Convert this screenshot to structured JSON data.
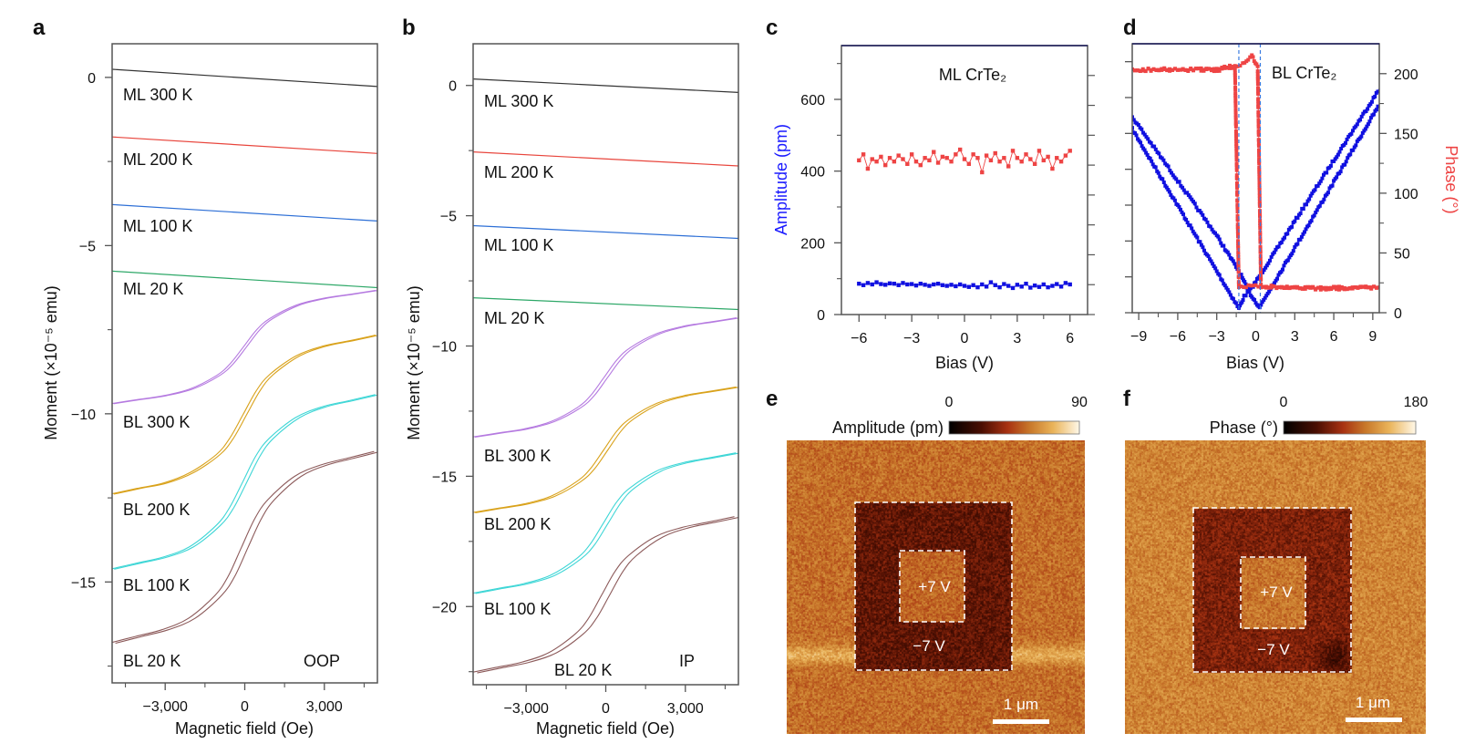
{
  "panel_labels": {
    "a": "a",
    "b": "b",
    "c": "c",
    "d": "d",
    "e": "e",
    "f": "f"
  },
  "chart_data": [
    {
      "panel": "a",
      "type": "line",
      "xlabel": "Magnetic field (Oe)",
      "ylabel": "Moment (×10⁻⁵ emu)",
      "annotation": "OOP",
      "xlim": [
        -5000,
        5000
      ],
      "ylim": [
        -18,
        1
      ],
      "xticks": [
        -3000,
        0,
        3000
      ],
      "xtick_labels": [
        "−3,000",
        "0",
        "3,000"
      ],
      "xminor": [
        -4500,
        -1500,
        1500,
        4500
      ],
      "yticks": [
        0,
        -5,
        -10,
        -15
      ],
      "ytick_labels": [
        "0",
        "−5",
        "−10",
        "−15"
      ],
      "yminor": [
        -2.5,
        -7.5,
        -12.5,
        -17.5
      ],
      "x_grid": [
        -5000,
        -4000,
        -3000,
        -2000,
        -1000,
        -500,
        0,
        500,
        1000,
        2000,
        3000,
        4000,
        5000
      ],
      "series": [
        {
          "name": "ML 300 K",
          "color": "#333333",
          "x": [
            -5000,
            5000
          ],
          "y": [
            0.24,
            -0.27
          ]
        },
        {
          "name": "ML 200 K",
          "color": "#e8453c",
          "x": [
            -5000,
            5000
          ],
          "y": [
            -1.77,
            -2.26
          ]
        },
        {
          "name": "ML 100 K",
          "color": "#2d6fd6",
          "x": [
            -5000,
            5000
          ],
          "y": [
            -3.78,
            -4.27
          ]
        },
        {
          "name": "ML 20 K",
          "color": "#2ea868",
          "x": [
            -5000,
            5000
          ],
          "y": [
            -5.76,
            -6.25
          ]
        },
        {
          "name": "BL 300 K",
          "color": "#b57ae0",
          "coercivity_oe": 60,
          "y": [
            -9.7,
            -9.58,
            -9.46,
            -9.26,
            -8.86,
            -8.52,
            -8.02,
            -7.51,
            -7.17,
            -6.77,
            -6.57,
            -6.45,
            -6.33
          ]
        },
        {
          "name": "BL 200 K",
          "color": "#d9a21b",
          "coercivity_oe": 70,
          "y": [
            -12.39,
            -12.22,
            -12.06,
            -11.75,
            -11.21,
            -10.73,
            -10.03,
            -9.32,
            -8.84,
            -8.28,
            -7.99,
            -7.83,
            -7.66
          ]
        },
        {
          "name": "BL 100 K",
          "color": "#3ed6d6",
          "coercivity_oe": 80,
          "y": [
            -14.62,
            -14.44,
            -14.26,
            -13.95,
            -13.32,
            -12.8,
            -12.03,
            -11.25,
            -10.73,
            -10.11,
            -9.79,
            -9.61,
            -9.43
          ]
        },
        {
          "name": "BL 20 K",
          "color": "#8c5a5a",
          "coercivity_oe": 125,
          "y": [
            -16.82,
            -16.62,
            -16.42,
            -16.08,
            -15.4,
            -14.83,
            -13.97,
            -13.12,
            -12.55,
            -11.86,
            -11.52,
            -11.32,
            -11.12
          ]
        }
      ]
    },
    {
      "panel": "b",
      "type": "line",
      "xlabel": "Magnetic field (Oe)",
      "ylabel": "Moment (×10⁻⁵ emu)",
      "annotation": "IP",
      "xlim": [
        -5000,
        5000
      ],
      "ylim": [
        -23,
        1.6
      ],
      "xticks": [
        -3000,
        0,
        3000
      ],
      "xtick_labels": [
        "−3,000",
        "0",
        "3,000"
      ],
      "xminor": [
        -4500,
        -1500,
        1500,
        4500
      ],
      "yticks": [
        0,
        -5,
        -10,
        -15,
        -20
      ],
      "ytick_labels": [
        "0",
        "−5",
        "−10",
        "−15",
        "−20"
      ],
      "yminor": [
        -2.5,
        -7.5,
        -12.5,
        -17.5,
        -22.5
      ],
      "x_grid": [
        -5000,
        -4000,
        -3000,
        -2000,
        -1000,
        -500,
        0,
        500,
        1000,
        2000,
        3000,
        4000,
        5000
      ],
      "series": [
        {
          "name": "ML 300 K",
          "color": "#333333",
          "x": [
            -5000,
            5000
          ],
          "y": [
            0.25,
            -0.27
          ]
        },
        {
          "name": "ML 200 K",
          "color": "#e8453c",
          "x": [
            -5000,
            5000
          ],
          "y": [
            -2.55,
            -3.09
          ]
        },
        {
          "name": "ML 100 K",
          "color": "#2d6fd6",
          "x": [
            -5000,
            5000
          ],
          "y": [
            -5.38,
            -5.87
          ]
        },
        {
          "name": "ML 20 K",
          "color": "#2ea868",
          "x": [
            -5000,
            5000
          ],
          "y": [
            -8.15,
            -8.6
          ]
        },
        {
          "name": "BL 300 K",
          "color": "#b57ae0",
          "coercivity_oe": 70,
          "y": [
            -13.5,
            -13.34,
            -13.18,
            -12.9,
            -12.36,
            -11.9,
            -11.21,
            -10.52,
            -10.06,
            -9.52,
            -9.24,
            -9.08,
            -8.92
          ]
        },
        {
          "name": "BL 200 K",
          "color": "#d9a21b",
          "coercivity_oe": 80,
          "y": [
            -16.4,
            -16.23,
            -16.06,
            -15.77,
            -15.19,
            -14.71,
            -13.99,
            -13.26,
            -12.78,
            -12.2,
            -11.91,
            -11.74,
            -11.57
          ]
        },
        {
          "name": "BL 100 K",
          "color": "#3ed6d6",
          "coercivity_oe": 90,
          "y": [
            -19.5,
            -19.31,
            -19.12,
            -18.8,
            -18.15,
            -17.61,
            -16.8,
            -15.99,
            -15.45,
            -14.8,
            -14.48,
            -14.29,
            -14.1
          ]
        },
        {
          "name": "BL 20 K",
          "color": "#8c5a5a",
          "coercivity_oe": 150,
          "y": [
            -22.55,
            -22.34,
            -22.13,
            -21.77,
            -21.05,
            -20.45,
            -19.55,
            -18.65,
            -18.05,
            -17.33,
            -16.97,
            -16.76,
            -16.55
          ]
        }
      ]
    },
    {
      "panel": "c",
      "type": "scatter",
      "xlabel": "Bias (V)",
      "ylabel": "Amplitude (pm)",
      "ylabel_color": "#1a1aff",
      "annotation": "ML CrTe₂",
      "xlim": [
        -7,
        7
      ],
      "ylim": [
        0,
        750
      ],
      "ylim_right": [
        0,
        225
      ],
      "xticks": [
        -6,
        -3,
        0,
        3,
        6
      ],
      "xtick_labels": [
        "−6",
        "−3",
        "0",
        "3",
        "6"
      ],
      "xminor": [
        -4.5,
        -1.5,
        1.5,
        4.5
      ],
      "yticks": [
        0,
        200,
        400,
        600
      ],
      "ytick_labels": [
        "0",
        "200",
        "400",
        "600"
      ],
      "yminor": [
        100,
        300,
        500,
        700
      ],
      "yticks_right": [
        0,
        25,
        50,
        75,
        100,
        125,
        150,
        175,
        200
      ],
      "x": [
        -6,
        -5.75,
        -5.5,
        -5.25,
        -5,
        -4.75,
        -4.5,
        -4.25,
        -4,
        -3.75,
        -3.5,
        -3.25,
        -3,
        -2.75,
        -2.5,
        -2.25,
        -2,
        -1.75,
        -1.5,
        -1.25,
        -1,
        -0.75,
        -0.5,
        -0.25,
        0,
        0.25,
        0.5,
        0.75,
        1,
        1.25,
        1.5,
        1.75,
        2,
        2.25,
        2.5,
        2.75,
        3,
        3.25,
        3.5,
        3.75,
        4,
        4.25,
        4.5,
        4.75,
        5,
        5.25,
        5.5,
        5.75,
        6
      ],
      "series": [
        {
          "quantity": "amplitude",
          "axis": "left",
          "color": "#1010e0",
          "y": [
            86,
            82,
            88,
            84,
            90,
            85,
            83,
            87,
            86,
            82,
            88,
            84,
            85,
            81,
            86,
            83,
            80,
            84,
            86,
            82,
            80,
            83,
            79,
            84,
            80,
            77,
            82,
            76,
            84,
            78,
            90,
            82,
            76,
            85,
            80,
            74,
            83,
            78,
            86,
            75,
            81,
            77,
            84,
            76,
            80,
            85,
            78,
            88,
            84
          ]
        },
        {
          "quantity": "phase",
          "axis": "right",
          "color": "#ee4444",
          "y": [
            129,
            134,
            122,
            130,
            128,
            132,
            125,
            131,
            128,
            133,
            130,
            126,
            134,
            128,
            125,
            131,
            129,
            136,
            127,
            132,
            131,
            128,
            134,
            138,
            130,
            126,
            134,
            131,
            119,
            133,
            129,
            135,
            128,
            131,
            124,
            137,
            131,
            128,
            134,
            130,
            126,
            137,
            129,
            132,
            122,
            131,
            128,
            133,
            137
          ]
        }
      ]
    },
    {
      "panel": "d",
      "type": "scatter",
      "xlabel": "Bias (V)",
      "ylabel_right": "Phase (°)",
      "ylabel_right_color": "#ee4444",
      "annotation": "BL CrTe₂",
      "xlim": [
        -9.5,
        9.5
      ],
      "ylim": [
        0,
        750
      ],
      "ylim_right": [
        0,
        225
      ],
      "xticks": [
        -9,
        -6,
        -3,
        0,
        3,
        6,
        9
      ],
      "xtick_labels": [
        "−9",
        "−6",
        "−3",
        "0",
        "3",
        "6",
        "9"
      ],
      "xminor": [
        -7.5,
        -4.5,
        -1.5,
        1.5,
        4.5,
        7.5
      ],
      "yticks": [
        0,
        100,
        200,
        300,
        400,
        500,
        600,
        700
      ],
      "yticks_right": [
        0,
        50,
        100,
        150,
        200
      ],
      "ytick_labels_right": [
        "0",
        "50",
        "100",
        "150",
        "200"
      ],
      "yminor_right": [
        25,
        75,
        125,
        175
      ],
      "vlines": [
        -1.3,
        0.35
      ],
      "vline_color": "#3a7be0",
      "series": [
        {
          "quantity": "amplitude",
          "axis": "left",
          "color": "#1010e0",
          "branches": [
            {
              "x": [
                -9.5,
                -6,
                -3,
                -1.3,
                -0.9,
                -0.5,
                0,
                0.3,
                3,
                6,
                9.5
              ],
              "y": [
                512,
                299,
                116,
                12,
                45,
                60,
                86,
                103,
                255,
                425,
                623
              ]
            },
            {
              "x": [
                -9.5,
                -6,
                -3,
                -1.2,
                -0.6,
                0,
                0.3,
                3,
                6,
                9.5
              ],
              "y": [
                546,
                368,
                215,
                110,
                62,
                30,
                16,
                181,
                364,
                580
              ]
            }
          ]
        },
        {
          "quantity": "phase",
          "axis": "right",
          "color": "#ee4444",
          "branches": [
            {
              "x": [
                -9.5,
                -6,
                -3,
                -1.6,
                -1.3,
                0,
                3,
                6,
                9.5
              ],
              "y": [
                203,
                204,
                203,
                205,
                22,
                22,
                21,
                21,
                21
              ]
            },
            {
              "x": [
                9.5,
                6,
                3,
                0.4,
                0.15,
                -0.3,
                -1.0,
                -3,
                -6,
                -9.5
              ],
              "y": [
                21,
                20,
                21,
                22,
                205,
                215,
                208,
                204,
                203,
                203
              ]
            }
          ]
        }
      ]
    }
  ],
  "images": {
    "e": {
      "colorbar_label": "Amplitude (pm)",
      "colorbar_min": "0",
      "colorbar_max": "90",
      "inner_label": "+7 V",
      "outer_label": "−7 V",
      "scalebar_label": "1 μm"
    },
    "f": {
      "colorbar_label": "Phase (°)",
      "colorbar_min": "0",
      "colorbar_max": "180",
      "inner_label": "+7 V",
      "outer_label": "−7 V",
      "scalebar_label": "1 μm"
    }
  }
}
